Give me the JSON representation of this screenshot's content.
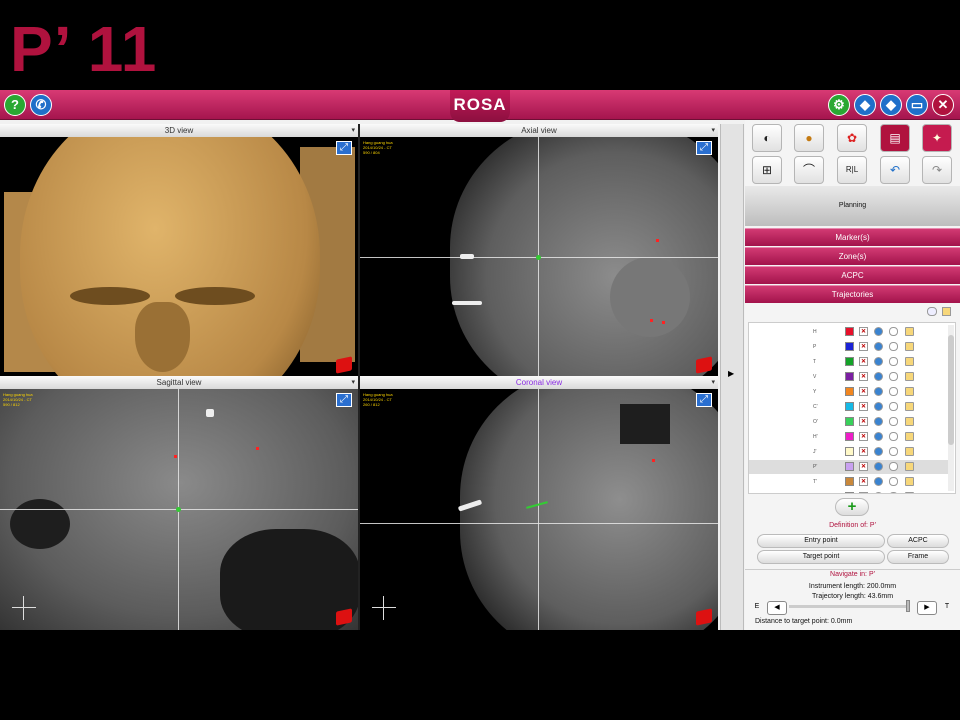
{
  "slide_title": "P’ 11",
  "app": {
    "logo": "ROSA",
    "left_buttons": [
      {
        "icon": "help-icon",
        "glyph": "?"
      },
      {
        "icon": "phone-icon",
        "glyph": "✆"
      }
    ],
    "right_buttons": [
      {
        "icon": "settings-icon",
        "glyph": "⚙"
      },
      {
        "icon": "nav-diamond-icon",
        "glyph": "◆"
      },
      {
        "icon": "nav-diamond-2-icon",
        "glyph": "◆"
      },
      {
        "icon": "monitor-icon",
        "glyph": "▭"
      },
      {
        "icon": "close-icon",
        "glyph": "✕"
      }
    ]
  },
  "views": {
    "view3d": {
      "title": "3D view"
    },
    "axial": {
      "title": "Axial view",
      "info": "Hang guang hua\n2014/10/24 - CT\n590 / 804"
    },
    "sagittal": {
      "title": "Sagittal view",
      "info": "Hang guang hua\n2014/10/24 - CT\n590 / 812"
    },
    "coronal": {
      "title": "Coronal view",
      "info": "Hang guang hua\n2014/10/24 - CT\n260 / 812"
    }
  },
  "right_panel": {
    "tools_row1": [
      {
        "icon": "dial-icon",
        "glyph": "◐"
      },
      {
        "icon": "head-icon",
        "glyph": "●"
      },
      {
        "icon": "brain-icon",
        "glyph": "✿"
      },
      {
        "icon": "screen-icon",
        "glyph": "▤"
      },
      {
        "icon": "robot-icon",
        "glyph": "✦"
      }
    ],
    "tools_row2": [
      {
        "icon": "grid-icon",
        "glyph": "⊞"
      },
      {
        "icon": "curve-icon",
        "glyph": "⌒"
      },
      {
        "icon": "rl-icon",
        "glyph": "R|L"
      },
      {
        "icon": "undo-icon",
        "glyph": "↶"
      },
      {
        "icon": "redo-icon",
        "glyph": "↷"
      }
    ],
    "planning_label": "Planning",
    "sections": [
      "Marker(s)",
      "Zone(s)",
      "ACPC",
      "Trajectories"
    ],
    "trajectories": [
      {
        "name": "H",
        "color": "#e8102a"
      },
      {
        "name": "P",
        "color": "#1b23d6"
      },
      {
        "name": "T",
        "color": "#13a228"
      },
      {
        "name": "V",
        "color": "#7b1fa2"
      },
      {
        "name": "Y",
        "color": "#f2861f"
      },
      {
        "name": "C'",
        "color": "#17b9e6"
      },
      {
        "name": "O'",
        "color": "#38d05a"
      },
      {
        "name": "H'",
        "color": "#ee1ec8"
      },
      {
        "name": "J'",
        "color": "#fff9c8"
      },
      {
        "name": "P'",
        "color": "#c8a0f0",
        "selected": true
      },
      {
        "name": "T'",
        "color": "#c9883a"
      },
      {
        "name": "V'",
        "color": "#f0a0a0"
      }
    ],
    "definition_label": "Definition of: P'",
    "buttons": {
      "entry": "Entry point",
      "acpc": "ACPC",
      "target": "Target point",
      "frame": "Frame"
    },
    "navigate_label": "Navigate in: P'",
    "instrument_length": "Instrument length: 200.0mm",
    "trajectory_length": "Trajectory length: 43.6mm",
    "nav_left": "E",
    "nav_right": "T",
    "distance": "Distance to target point: 0.0mm"
  }
}
